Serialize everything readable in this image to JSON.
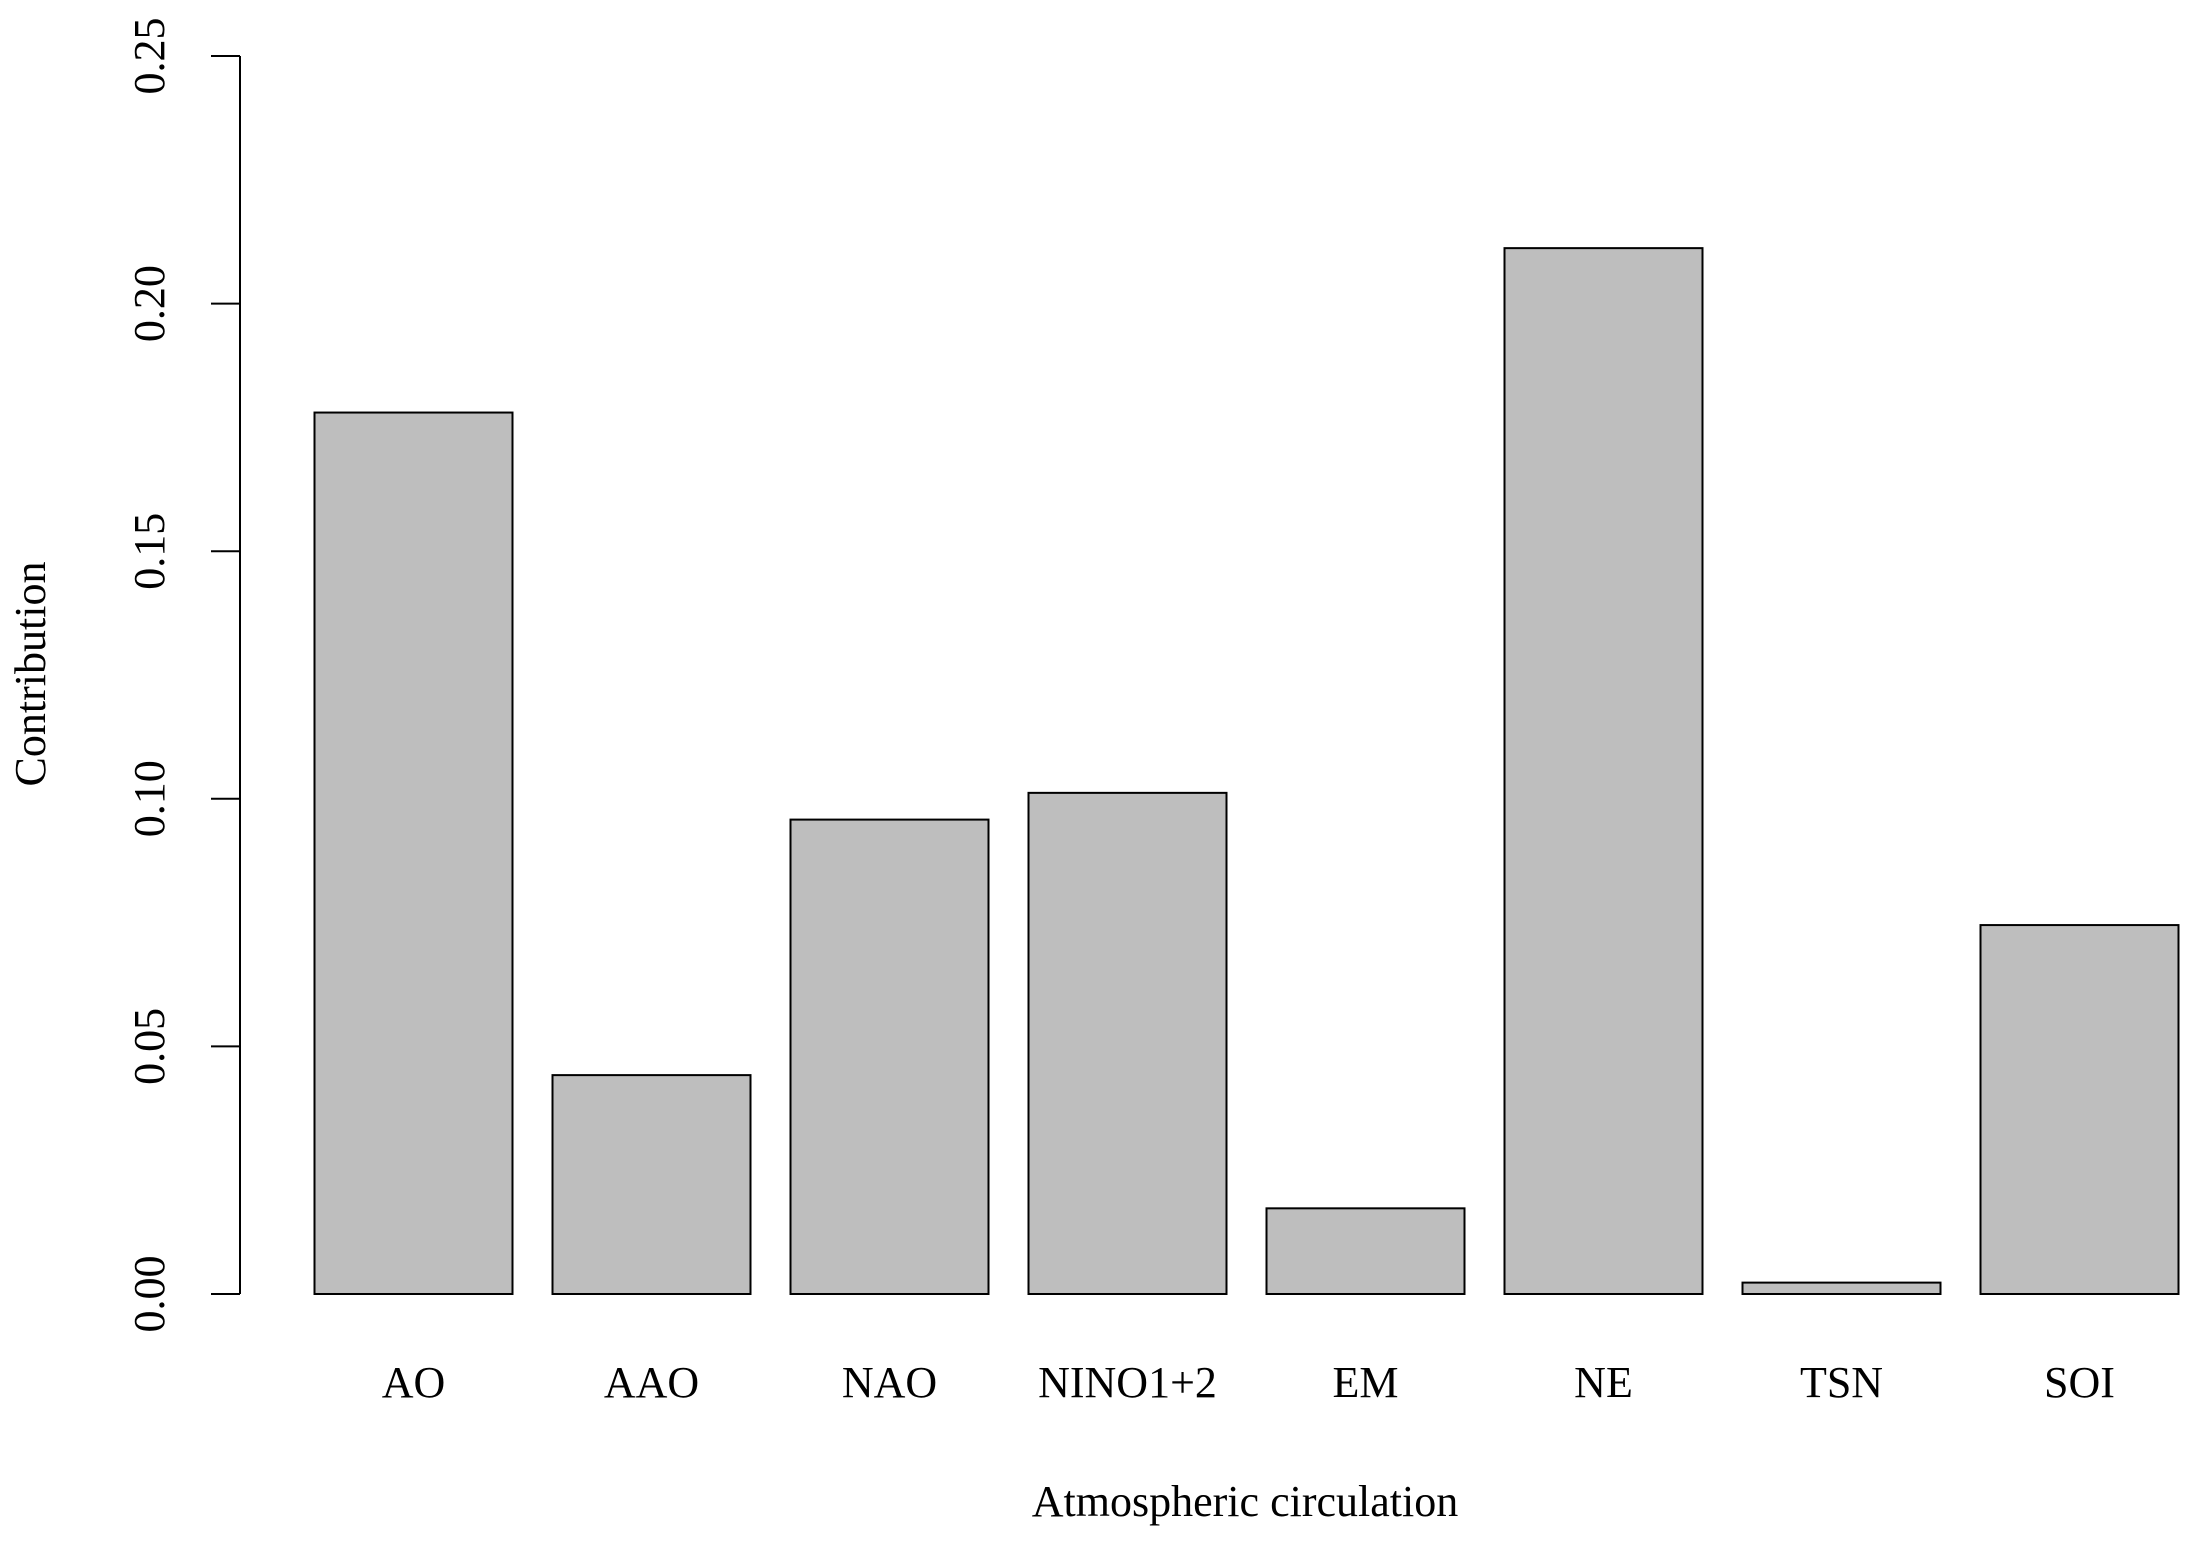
{
  "chart_data": {
    "type": "bar",
    "x_label": "Atmospheric circulation",
    "y_label": "Contribution",
    "categories": [
      "AO",
      "AAO",
      "NAO",
      "NINO1+2",
      "EM",
      "NE",
      "TSN",
      "SOI"
    ],
    "values": [
      0.178,
      0.0442,
      0.0958,
      0.1012,
      0.0173,
      0.2112,
      0.0023,
      0.0745
    ],
    "color": "#bebebe",
    "ylim": [
      0,
      0.25
    ],
    "yticks": [
      {
        "value": 0,
        "label": "0.00"
      },
      {
        "value": 0.05,
        "label": "0.05"
      },
      {
        "value": 0.1,
        "label": "0.10"
      },
      0.15,
      {
        "value": 0.2,
        "label": "0.20"
      },
      0.25
    ],
    "grid": false
  }
}
